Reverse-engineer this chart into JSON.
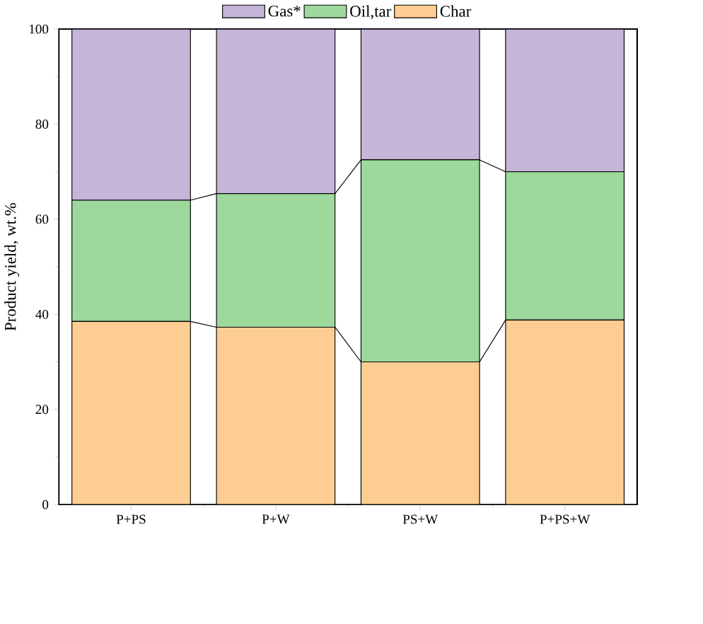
{
  "chart_data": {
    "type": "bar",
    "stacked": true,
    "ylabel": "Product yield, wt.%",
    "categories": [
      "P+PS",
      "P+W",
      "PS+W",
      "P+PS+W"
    ],
    "series": [
      {
        "name": "Char",
        "color": "#fecd91",
        "values": [
          38.5,
          37.3,
          30.0,
          38.8
        ]
      },
      {
        "name": "Oil,tar",
        "color": "#9dd89d",
        "values": [
          25.5,
          28.1,
          42.5,
          31.2
        ]
      },
      {
        "name": "Gas*",
        "color": "#c5b5d8",
        "values": [
          36.0,
          34.6,
          27.5,
          30.0
        ]
      }
    ],
    "ylim": [
      0,
      100
    ],
    "yticks": [
      0,
      20,
      40,
      60,
      80,
      100
    ],
    "legend": "top"
  }
}
